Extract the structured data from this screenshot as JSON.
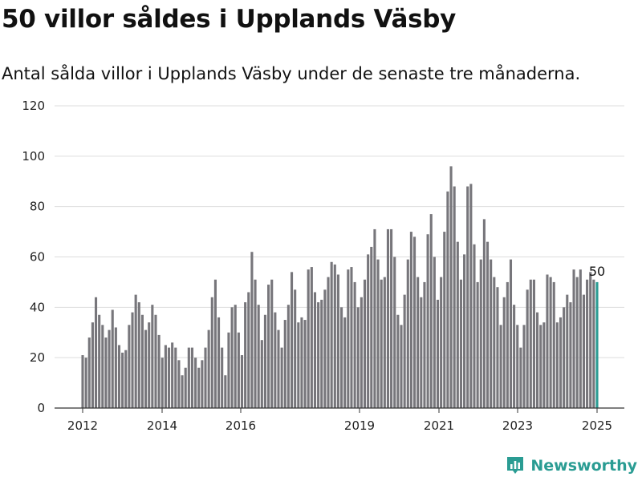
{
  "title": "50 villor såldes i Upplands Väsby",
  "subtitle": "Antal sålda villor i Upplands Väsby under de senaste tre månaderna.",
  "brand": {
    "name": "Newsworthy",
    "color": "#2a9c93"
  },
  "colors": {
    "bar": "#77767b",
    "highlight": "#2a9c93",
    "grid": "#dddddd",
    "axis": "#333333"
  },
  "chart_data": {
    "type": "bar",
    "title": "50 villor såldes i Upplands Väsby",
    "subtitle": "Antal sålda villor i Upplands Väsby under de senaste tre månaderna.",
    "xlabel": "",
    "ylabel": "",
    "ylim": [
      0,
      120
    ],
    "yticks": [
      0,
      20,
      40,
      60,
      80,
      100,
      120
    ],
    "xticks": [
      "2012",
      "2014",
      "2016",
      "2019",
      "2021",
      "2023",
      "2025"
    ],
    "grid": true,
    "highlight_last": true,
    "last_label": "50",
    "values": [
      21,
      20,
      28,
      34,
      44,
      37,
      33,
      28,
      31,
      39,
      32,
      25,
      22,
      23,
      33,
      38,
      45,
      42,
      37,
      31,
      34,
      41,
      37,
      29,
      20,
      25,
      24,
      26,
      24,
      19,
      13,
      16,
      24,
      24,
      20,
      16,
      19,
      24,
      31,
      44,
      51,
      36,
      24,
      13,
      30,
      40,
      41,
      30,
      21,
      42,
      46,
      62,
      51,
      41,
      27,
      37,
      49,
      51,
      38,
      31,
      24,
      35,
      41,
      54,
      47,
      34,
      36,
      35,
      55,
      56,
      46,
      42,
      43,
      47,
      52,
      58,
      57,
      53,
      40,
      36,
      55,
      56,
      50,
      40,
      44,
      51,
      61,
      64,
      71,
      59,
      51,
      52,
      71,
      71,
      60,
      37,
      33,
      45,
      59,
      70,
      68,
      52,
      44,
      50,
      69,
      77,
      60,
      43,
      52,
      70,
      86,
      96,
      88,
      66,
      51,
      61,
      88,
      89,
      65,
      50,
      59,
      75,
      66,
      59,
      52,
      48,
      33,
      44,
      50,
      59,
      41,
      33,
      24,
      33,
      47,
      51,
      51,
      38,
      33,
      34,
      53,
      52,
      50,
      34,
      36,
      40,
      45,
      42,
      55,
      52,
      55,
      45,
      51,
      54,
      51,
      50
    ]
  }
}
